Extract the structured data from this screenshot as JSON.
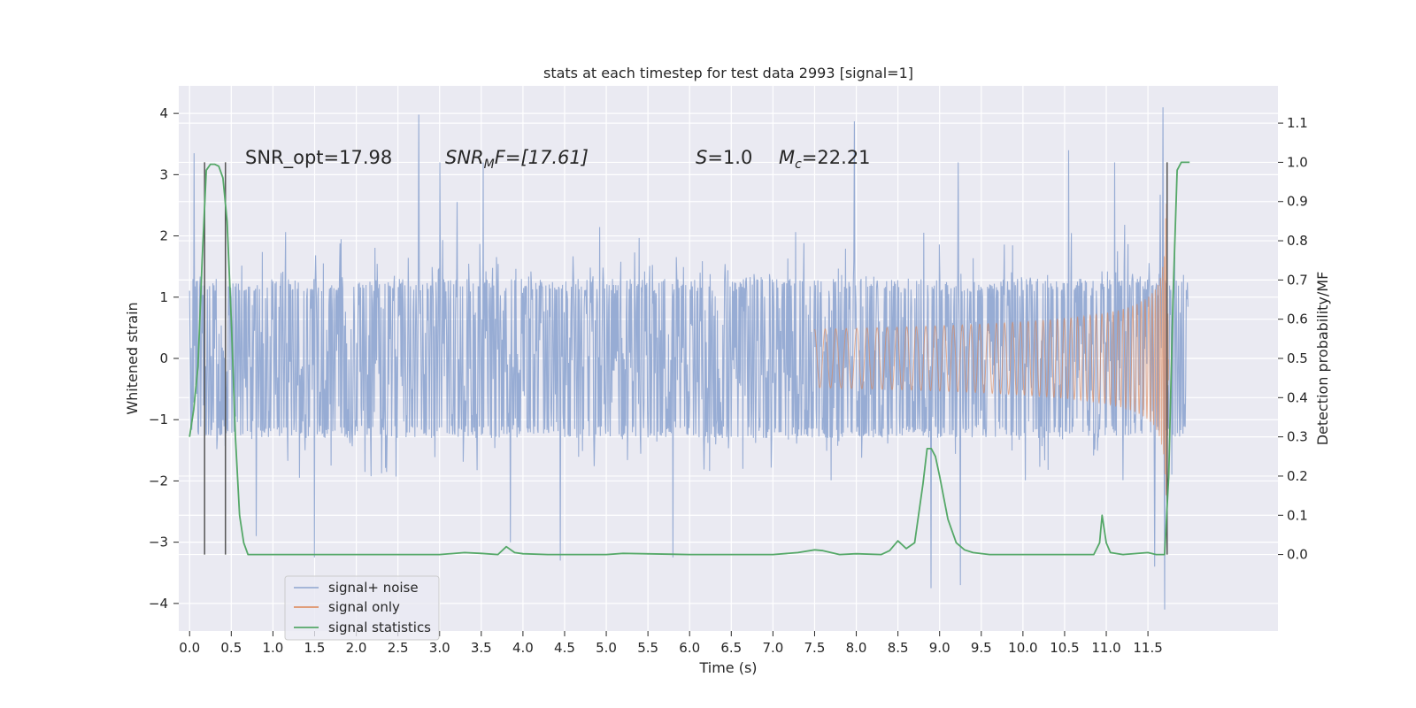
{
  "chart_data": {
    "type": "line",
    "title": "stats at each timestep for test data 2993 [signal=1]",
    "xlabel": "Time (s)",
    "ylabel": "Whitened strain",
    "y2label": "Detection probability/MF",
    "xlim": [
      -0.13,
      13.06
    ],
    "ylim": [
      -4.45,
      4.45
    ],
    "y2lim": [
      -0.195,
      1.195
    ],
    "xticks": [
      "0.0",
      "0.5",
      "1.0",
      "1.5",
      "2.0",
      "2.5",
      "3.0",
      "3.5",
      "4.0",
      "4.5",
      "5.0",
      "5.5",
      "6.0",
      "6.5",
      "7.0",
      "7.5",
      "8.0",
      "8.5",
      "9.0",
      "9.5",
      "10.0",
      "10.5",
      "11.0",
      "11.5"
    ],
    "yticks": [
      "4",
      "3",
      "2",
      "1",
      "0",
      "−1",
      "−2",
      "−3",
      "−4"
    ],
    "y2ticks": [
      "1.1",
      "1.0",
      "0.9",
      "0.8",
      "0.7",
      "0.6",
      "0.5",
      "0.4",
      "0.3",
      "0.2",
      "0.1",
      "0.0"
    ],
    "grid": true,
    "legend_position": "lower-left",
    "legend": [
      "signal+ noise",
      "signal only",
      "signal statistics"
    ],
    "colors": {
      "background": "#eaeaf2",
      "grid": "#ffffff",
      "noise": "#8ea5d0",
      "signal": "#dd8452",
      "stats": "#55a868",
      "vlines": "#555555"
    },
    "annotations": {
      "snr_opt": "SNR_opt=17.98",
      "snr_mf_main": "SNR",
      "snr_mf_sub": "M",
      "snr_mf_rest": "F=[17.61]",
      "s_label": "S",
      "s_value": "=1.0",
      "mc_main": "M",
      "mc_sub": "c",
      "mc_value": "=22.21"
    },
    "vertical_lines_x": [
      0.18,
      0.43,
      11.73
    ],
    "signal_statistics": {
      "x": [
        0.0,
        0.05,
        0.1,
        0.15,
        0.2,
        0.25,
        0.3,
        0.35,
        0.4,
        0.45,
        0.5,
        0.55,
        0.6,
        0.65,
        0.7,
        1.0,
        2.0,
        3.0,
        3.3,
        3.5,
        3.7,
        3.8,
        3.9,
        4.0,
        4.3,
        5.0,
        5.2,
        6.0,
        7.0,
        7.3,
        7.5,
        7.6,
        7.8,
        8.0,
        8.3,
        8.4,
        8.5,
        8.6,
        8.7,
        8.8,
        8.85,
        8.9,
        8.95,
        9.0,
        9.1,
        9.2,
        9.3,
        9.4,
        9.6,
        10.0,
        10.5,
        10.85,
        10.92,
        10.95,
        11.0,
        11.05,
        11.2,
        11.5,
        11.6,
        11.7,
        11.75,
        11.8,
        11.85,
        11.9,
        11.95,
        12.0
      ],
      "y": [
        0.3,
        0.37,
        0.48,
        0.75,
        0.98,
        0.995,
        0.995,
        0.99,
        0.96,
        0.85,
        0.6,
        0.3,
        0.1,
        0.03,
        0.0,
        0.0,
        0.0,
        0.0,
        0.005,
        0.003,
        0.0,
        0.02,
        0.005,
        0.002,
        0.0,
        0.0,
        0.003,
        0.0,
        0.0,
        0.005,
        0.012,
        0.01,
        0.0,
        0.002,
        0.0,
        0.01,
        0.035,
        0.015,
        0.03,
        0.18,
        0.27,
        0.27,
        0.25,
        0.2,
        0.09,
        0.03,
        0.012,
        0.005,
        0.0,
        0.0,
        0.0,
        0.0,
        0.03,
        0.1,
        0.03,
        0.005,
        0.0,
        0.005,
        0.0,
        0.0,
        0.2,
        0.65,
        0.98,
        1.0,
        1.0,
        1.0
      ]
    },
    "signal_plus_noise": {
      "time_range": [
        0.0,
        11.98
      ],
      "n_samples": 1800,
      "typical_range": [
        -1.3,
        1.3
      ],
      "peaks": [
        {
          "x": 0.05,
          "y": 3.35
        },
        {
          "x": 2.75,
          "y": 3.98
        },
        {
          "x": 3.0,
          "y": 3.2
        },
        {
          "x": 3.52,
          "y": 3.2
        },
        {
          "x": 7.98,
          "y": 3.87
        },
        {
          "x": 9.22,
          "y": 3.2
        },
        {
          "x": 10.55,
          "y": 3.4
        },
        {
          "x": 11.68,
          "y": 4.1
        },
        {
          "x": 11.1,
          "y": 3.2
        },
        {
          "x": 8.9,
          "y": -3.75
        },
        {
          "x": 11.7,
          "y": -4.1
        },
        {
          "x": 9.25,
          "y": -3.7
        },
        {
          "x": 4.45,
          "y": -3.3
        },
        {
          "x": 1.5,
          "y": -3.25
        },
        {
          "x": 5.8,
          "y": -3.25
        },
        {
          "x": 11.58,
          "y": -3.4
        },
        {
          "x": 0.8,
          "y": -2.9
        },
        {
          "x": 3.85,
          "y": -3.0
        }
      ]
    },
    "signal_only": {
      "description_of_shape": "chirp",
      "start_time": 7.5,
      "merger_time": 11.72,
      "peak_amplitude": 3.2
    }
  }
}
